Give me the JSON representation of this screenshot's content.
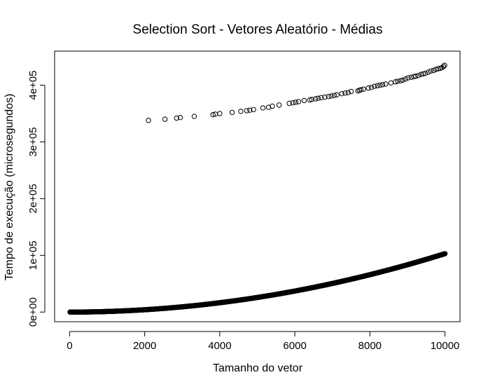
{
  "chart_data": {
    "type": "scatter",
    "title": "Selection Sort - Vetores Aleatório - Médias",
    "xlabel": "Tamanho do vetor",
    "ylabel": "Tempo de execução (microsegundos)",
    "xlim": [
      -400,
      10400
    ],
    "ylim": [
      -17000,
      460000
    ],
    "x_ticks": [
      0,
      2000,
      4000,
      6000,
      8000,
      10000
    ],
    "x_tick_labels": [
      "0",
      "2000",
      "4000",
      "6000",
      "8000",
      "10000"
    ],
    "y_ticks": [
      0,
      100000,
      200000,
      300000,
      400000
    ],
    "y_tick_labels": [
      "0e+00",
      "1e+05",
      "2e+05",
      "3e+05",
      "4e+05"
    ],
    "grid": false,
    "marker": "open-circle",
    "series": [
      {
        "curve": {
          "x_range": [
            10,
            10000
          ],
          "step": 10,
          "y_formula": "1.03e-3 * x^2",
          "y_at_x": {
            "2000": 4100,
            "4000": 16500,
            "6000": 37000,
            "8000": 66000,
            "10000": 103000
          }
        }
      },
      {
        "points": [
          [
            2100,
            338000
          ],
          [
            2540,
            340000
          ],
          [
            2850,
            342000
          ],
          [
            2950,
            343000
          ],
          [
            3320,
            345000
          ],
          [
            3820,
            348000
          ],
          [
            3880,
            349000
          ],
          [
            4000,
            350000
          ],
          [
            4330,
            352000
          ],
          [
            4560,
            354000
          ],
          [
            4720,
            355000
          ],
          [
            4800,
            356000
          ],
          [
            4900,
            357000
          ],
          [
            5150,
            360000
          ],
          [
            5300,
            361000
          ],
          [
            5400,
            363000
          ],
          [
            5580,
            365000
          ],
          [
            5850,
            368000
          ],
          [
            5950,
            369000
          ],
          [
            6020,
            370000
          ],
          [
            6100,
            371000
          ],
          [
            6250,
            373000
          ],
          [
            6400,
            374000
          ],
          [
            6450,
            375000
          ],
          [
            6550,
            376000
          ],
          [
            6620,
            377000
          ],
          [
            6700,
            378000
          ],
          [
            6800,
            379000
          ],
          [
            6900,
            380000
          ],
          [
            6970,
            381000
          ],
          [
            7050,
            382000
          ],
          [
            7120,
            383000
          ],
          [
            7250,
            385000
          ],
          [
            7340,
            386000
          ],
          [
            7420,
            387000
          ],
          [
            7500,
            389000
          ],
          [
            7680,
            390000
          ],
          [
            7720,
            391000
          ],
          [
            7760,
            392000
          ],
          [
            7830,
            393000
          ],
          [
            7960,
            395000
          ],
          [
            8040,
            396000
          ],
          [
            8120,
            398000
          ],
          [
            8200,
            399000
          ],
          [
            8270,
            400000
          ],
          [
            8340,
            401000
          ],
          [
            8420,
            402000
          ],
          [
            8560,
            404000
          ],
          [
            8680,
            406000
          ],
          [
            8740,
            407000
          ],
          [
            8820,
            408000
          ],
          [
            8880,
            409000
          ],
          [
            8950,
            411000
          ],
          [
            9020,
            413000
          ],
          [
            9100,
            414000
          ],
          [
            9170,
            415000
          ],
          [
            9220,
            416000
          ],
          [
            9290,
            417000
          ],
          [
            9360,
            419000
          ],
          [
            9420,
            420000
          ],
          [
            9480,
            421000
          ],
          [
            9560,
            423000
          ],
          [
            9620,
            425000
          ],
          [
            9700,
            426000
          ],
          [
            9760,
            428000
          ],
          [
            9820,
            429000
          ],
          [
            9880,
            430000
          ],
          [
            9920,
            431000
          ],
          [
            9960,
            433000
          ],
          [
            9990,
            435000
          ]
        ]
      }
    ]
  }
}
